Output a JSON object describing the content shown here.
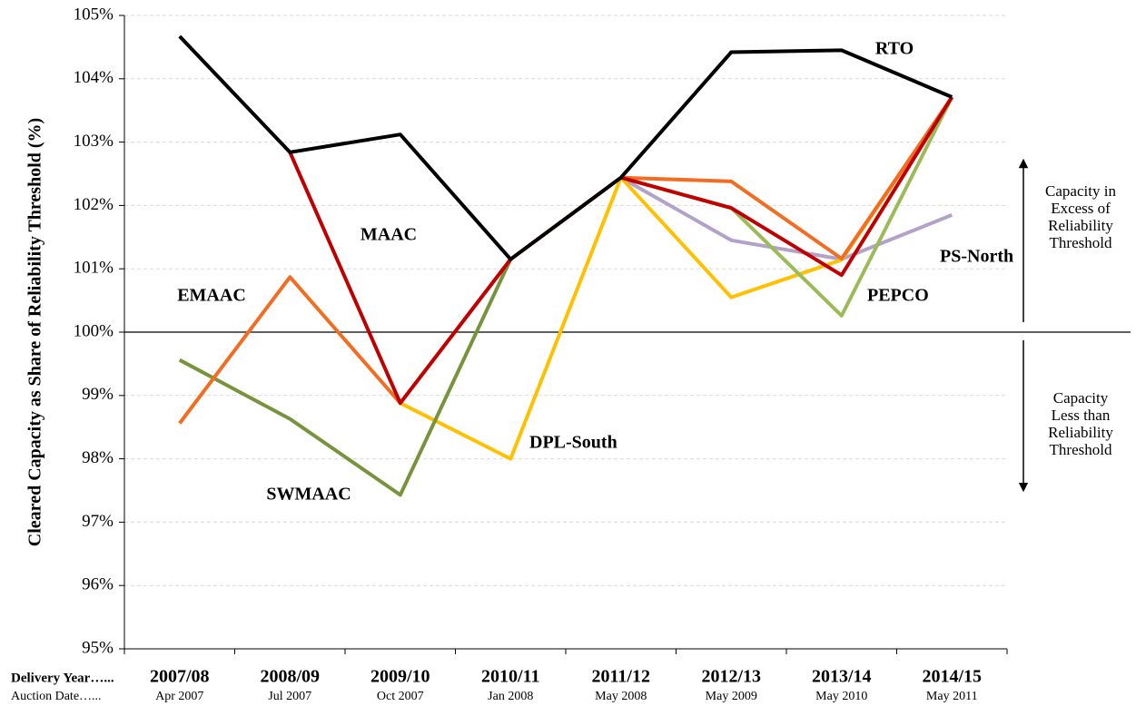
{
  "chart_data": {
    "type": "line",
    "y_label": "Cleared Capacity as Share of Reliability Threshold (%)",
    "x_row_label": "Delivery Year…...",
    "date_row_label": "Auction Date…...",
    "categories": [
      "2007/08",
      "2008/09",
      "2009/10",
      "2010/11",
      "2011/12",
      "2012/13",
      "2013/14",
      "2014/15"
    ],
    "auction_dates": [
      "Apr 2007",
      "Jul 2007",
      "Oct 2007",
      "Jan 2008",
      "May 2008",
      "May 2009",
      "May 2010",
      "May 2011"
    ],
    "ylim": [
      95,
      105
    ],
    "yticks": [
      {
        "value": 95,
        "label": "95%"
      },
      {
        "value": 96,
        "label": "96%"
      },
      {
        "value": 97,
        "label": "97%"
      },
      {
        "value": 98,
        "label": "98%"
      },
      {
        "value": 99,
        "label": "99%"
      },
      {
        "value": 100,
        "label": "100%"
      },
      {
        "value": 101,
        "label": "101%"
      },
      {
        "value": 102,
        "label": "102%"
      },
      {
        "value": 103,
        "label": "103%"
      },
      {
        "value": 104,
        "label": "104%"
      },
      {
        "value": 105,
        "label": "105%"
      }
    ],
    "grid": true,
    "reference_line": 100,
    "series": [
      {
        "name": "PS-North",
        "color": "#b3a2c7",
        "values": [
          null,
          null,
          null,
          null,
          102.44,
          101.45,
          101.15,
          101.85
        ]
      },
      {
        "name": "DPL-South",
        "color": "#ffc000",
        "values": [
          null,
          null,
          98.88,
          98.0,
          102.44,
          100.55,
          101.14,
          103.71
        ]
      },
      {
        "name": "PEPCO",
        "color": "#9bbb59",
        "values": [
          null,
          null,
          null,
          null,
          102.44,
          101.96,
          100.26,
          103.71
        ]
      },
      {
        "name": "SWMAAC",
        "color": "#77933c",
        "values": [
          99.56,
          98.63,
          97.43,
          101.15,
          null,
          null,
          null,
          null
        ]
      },
      {
        "name": "EMAAC",
        "color": "#f26d21",
        "values": [
          98.56,
          100.87,
          98.88,
          101.15,
          102.44,
          102.38,
          101.16,
          103.71
        ]
      },
      {
        "name": "MAAC",
        "color": "#c00000",
        "values": [
          null,
          102.84,
          98.88,
          101.15,
          102.44,
          101.96,
          100.9,
          103.71
        ]
      },
      {
        "name": "RTO",
        "color": "#000000",
        "values": [
          104.67,
          102.84,
          103.12,
          101.15,
          102.44,
          104.42,
          104.45,
          103.71
        ]
      }
    ],
    "annotations": [
      {
        "lines": [
          "Capacity in",
          "Excess of",
          "Reliability",
          "Threshold"
        ]
      },
      {
        "lines": [
          "Capacity",
          "Less than",
          "Reliability",
          "Threshold"
        ]
      }
    ]
  }
}
